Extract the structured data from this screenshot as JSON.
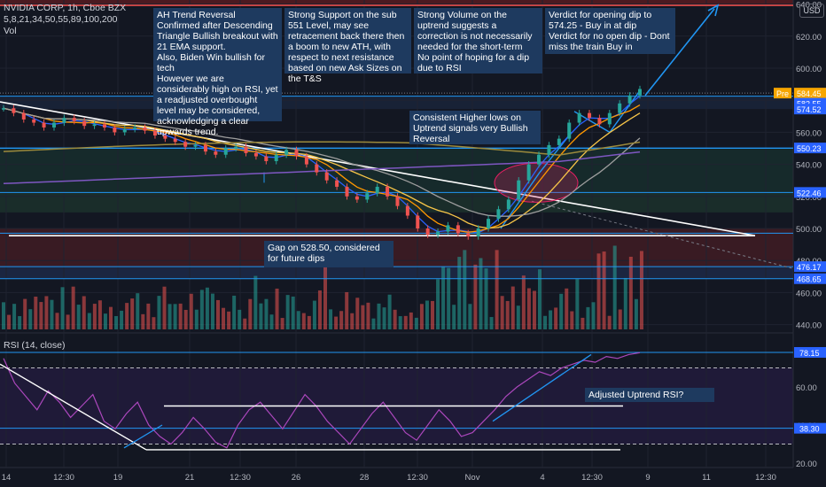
{
  "header": {
    "title": "NVIDIA CORP, 1h, Cboe BZX",
    "ma_list": "5,8,21,34,50,55,89,100,200",
    "vol": "Vol",
    "rsi_label": "RSI (14, close)",
    "currency": "USD"
  },
  "notes": {
    "n1": "AH Trend Reversal Confirmed after Descending Triangle Bullish breakout with 21 EMA support.\nAlso, Biden Win bullish for tech\nHowever we are considerably high on RSI, yet a readjusted overbought level may be considered, acknowledging a clear upwards trend.",
    "n2": "Strong Support on the sub 551 Level, may see retracement back there then a boom to new ATH, with respect to next resistance based on new Ask Sizes on the T&S",
    "n3": "Strong Volume on the uptrend suggests a correction is not necessarily needed for the short-term\nNo point of hoping for a dip due to RSI",
    "n4": "Verdict for opening dip to 574.25 - Buy in at dip\nVerdict for no open dip - Dont miss the train Buy in",
    "n5": "Consistent Higher lows on Uptrend signals very Bullish Reversal",
    "n6": "Gap on 528.50, considered for future dips",
    "n7": "Adjusted Uptrend RSI?"
  },
  "chart_data": {
    "type": "line",
    "title": "NVIDIA CORP, 1h, Cboe BZX",
    "price_ticks": [
      "640.00",
      "620.00",
      "600.00",
      "580.00",
      "560.00",
      "540.00",
      "520.00",
      "500.00",
      "480.00",
      "460.00",
      "440.00"
    ],
    "rsi_ticks": [
      "60.00",
      "40.00",
      "20.00"
    ],
    "x_ticks": [
      "14",
      "12:30",
      "19",
      "21",
      "12:30",
      "26",
      "28",
      "12:30",
      "Nov",
      "4",
      "12:30",
      "9",
      "11",
      "12:30"
    ],
    "price_labels": [
      {
        "text": "Pre",
        "value": 584.45,
        "color": "#f7a600"
      },
      {
        "text": "584.45",
        "value": 584.45,
        "color": "#f7a600"
      },
      {
        "text": "582.55",
        "value": 582.55,
        "color": "#2962ff"
      },
      {
        "text": "574.52",
        "value": 574.52,
        "color": "#2962ff"
      },
      {
        "text": "550.23",
        "value": 550.23,
        "color": "#2962ff"
      },
      {
        "text": "522.46",
        "value": 522.46,
        "color": "#2962ff"
      },
      {
        "text": "476.17",
        "value": 476.17,
        "color": "#2962ff"
      },
      {
        "text": "468.65",
        "value": 468.65,
        "color": "#2962ff"
      }
    ],
    "rsi_labels": [
      {
        "text": "78.15",
        "value": 78.15
      },
      {
        "text": "38.30",
        "value": 38.3
      }
    ],
    "horizontal_levels": [
      582.55,
      550.23,
      522.46,
      476.17,
      468.65
    ],
    "gap_level": 528.5,
    "dip_level": 574.25,
    "series": [
      {
        "values": [
          575,
          572,
          568,
          566,
          563,
          566,
          569,
          567,
          564,
          565,
          563,
          560,
          562,
          563,
          561,
          558,
          556,
          554,
          551,
          552,
          548,
          546,
          550,
          551,
          547,
          545,
          542,
          546,
          549,
          545,
          540,
          535,
          530,
          526,
          520,
          518,
          522,
          526,
          520,
          514,
          508,
          500,
          496,
          498,
          502,
          497,
          495,
          500,
          506,
          512,
          518,
          530,
          540,
          546,
          552,
          556,
          566,
          572,
          569,
          565,
          572,
          578,
          583,
          587
        ]
      }
    ],
    "rsi": [
      75,
      62,
      55,
      48,
      58,
      52,
      44,
      50,
      56,
      42,
      38,
      46,
      52,
      40,
      34,
      30,
      36,
      44,
      38,
      31,
      28,
      40,
      48,
      52,
      45,
      38,
      47,
      56,
      50,
      42,
      36,
      30,
      38,
      46,
      52,
      44,
      36,
      32,
      40,
      48,
      42,
      34,
      36,
      42,
      48,
      55,
      60,
      64,
      68,
      66,
      70,
      72,
      74,
      73,
      76,
      75,
      77,
      78
    ]
  }
}
